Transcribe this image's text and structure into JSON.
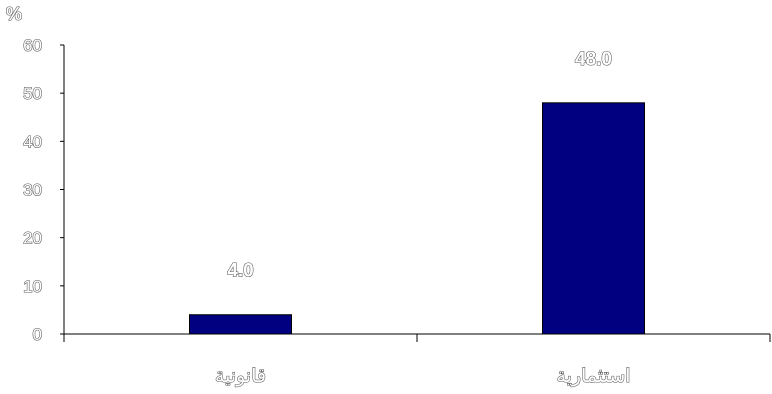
{
  "chart_data": {
    "type": "bar",
    "title": "",
    "xlabel": "",
    "ylabel": "%",
    "ylim": [
      0,
      60
    ],
    "yticks": [
      0,
      10,
      20,
      30,
      40,
      50,
      60
    ],
    "grid": false,
    "categories": [
      "قانونية",
      "استثمارية"
    ],
    "values": [
      4.0,
      48.0
    ],
    "value_labels": [
      "4.0",
      "48.0"
    ],
    "bar_color": "#000080"
  }
}
